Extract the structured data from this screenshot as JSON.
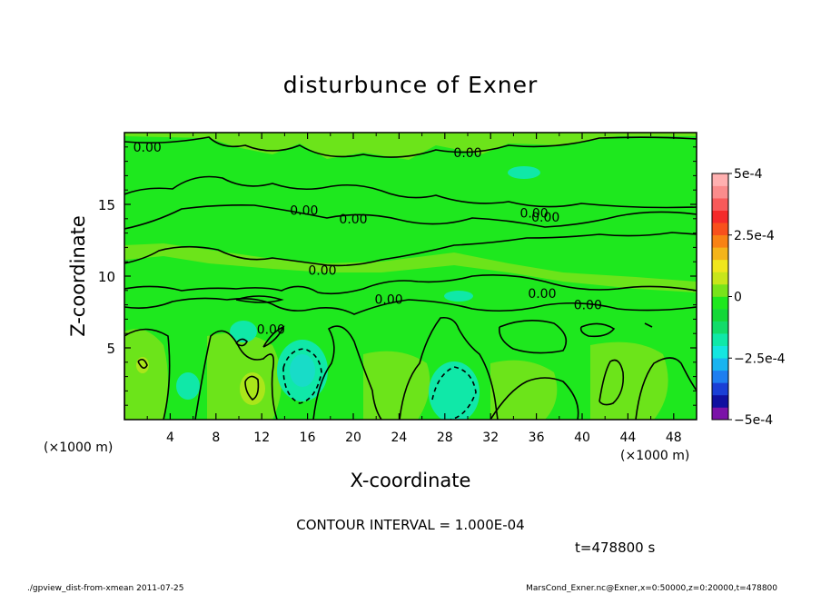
{
  "chart_data": {
    "type": "contour",
    "title": "disturbunce of Exner",
    "xlabel": "X-coordinate",
    "ylabel": "Z-coordinate",
    "x_unit_left": "(×1000 m)",
    "x_unit_right": "(×1000 m)",
    "xlim": [
      0,
      50
    ],
    "ylim": [
      0,
      20
    ],
    "x_ticks": [
      "4",
      "8",
      "12",
      "16",
      "20",
      "24",
      "28",
      "32",
      "36",
      "40",
      "44",
      "48"
    ],
    "x_tick_values": [
      4,
      8,
      12,
      16,
      20,
      24,
      28,
      32,
      36,
      40,
      44,
      48
    ],
    "y_ticks": [
      "5",
      "10",
      "15"
    ],
    "y_tick_values": [
      5,
      10,
      15
    ],
    "contour_interval_text": "CONTOUR INTERVAL = 1.000E-04",
    "contour_labels": [
      {
        "text": "0.00",
        "x": 2.0,
        "y": 19.0
      },
      {
        "text": "0.00",
        "x": 30.0,
        "y": 18.6
      },
      {
        "text": "0.00",
        "x": 15.7,
        "y": 14.6
      },
      {
        "text": "0.00",
        "x": 20.0,
        "y": 14.0
      },
      {
        "text": "0.00",
        "x": 35.8,
        "y": 14.4
      },
      {
        "text": "0.00",
        "x": 36.8,
        "y": 14.1
      },
      {
        "text": "0.00",
        "x": 17.3,
        "y": 10.4
      },
      {
        "text": "0.00",
        "x": 23.1,
        "y": 8.4
      },
      {
        "text": "0.00",
        "x": 36.5,
        "y": 8.8
      },
      {
        "text": "0.00",
        "x": 40.5,
        "y": 8.0
      },
      {
        "text": "0.00",
        "x": 12.8,
        "y": 6.3
      }
    ],
    "colorbar": {
      "ticks": [
        "5e-4",
        "2.5e-4",
        "0",
        "−2.5e-4",
        "−5e-4"
      ],
      "tick_values": [
        0.0005,
        0.00025,
        0,
        -0.00025,
        -0.0005
      ],
      "colors": [
        "#7b13a8",
        "#1010a0",
        "#1a3fd6",
        "#1e7ef0",
        "#18b4f0",
        "#14e6e0",
        "#10e8a8",
        "#12dc6a",
        "#14d838",
        "#1ee81e",
        "#78e41a",
        "#c8e61a",
        "#f0e61c",
        "#f4b41a",
        "#f88214",
        "#f8501c",
        "#f42a2a",
        "#f85a5a",
        "#fa8c8c",
        "#ffb0b0"
      ]
    },
    "field_colors": {
      "base": "#1ee81e",
      "light": "#6ce41a",
      "yellowish": "#aae61a",
      "teal": "#10e8a8",
      "cyan": "#18dcc8"
    },
    "time_text": "t=478800 s",
    "footer_left": "./gpview_dist-from-xmean  2011-07-25",
    "footer_right": "MarsCond_Exner.nc@Exner,x=0:50000,z=0:20000,t=478800"
  }
}
